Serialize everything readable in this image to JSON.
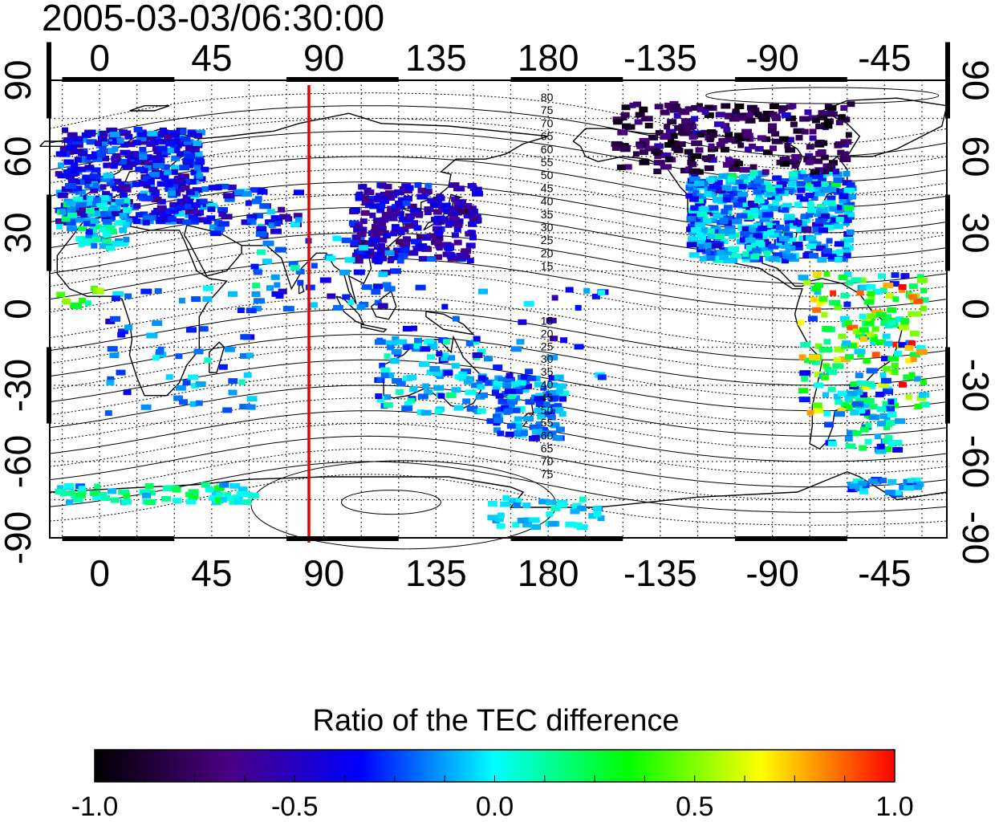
{
  "timestamp": "2005-03-03/06:30:00",
  "map": {
    "lon_ticks": [
      "0",
      "45",
      "90",
      "135",
      "180",
      "-135",
      "-90",
      "-45"
    ],
    "lat_ticks": [
      "90",
      "60",
      "30",
      "0",
      "-30",
      "-60",
      "-90"
    ],
    "lon_range": [
      -20,
      340
    ],
    "lat_range": [
      -90,
      90
    ],
    "grid": "dotted, every 15 degrees",
    "marker_longitude": 84,
    "marker_color": "#e60000",
    "contour_labels_north": [
      "80",
      "75",
      "70",
      "65",
      "60",
      "55",
      "50",
      "45",
      "40",
      "35",
      "30",
      "25",
      "20",
      "15"
    ],
    "contour_labels_south": [
      "15",
      "20",
      "25",
      "30",
      "35",
      "40",
      "45",
      "50",
      "55",
      "60",
      "65",
      "70",
      "75"
    ]
  },
  "colorbar": {
    "title": "Ratio of the TEC difference",
    "min": -1.0,
    "max": 1.0,
    "tick_labels": [
      "-1.0",
      "-0.5",
      "0.0",
      "0.5",
      "1.0"
    ],
    "colormap_stops": [
      "#000000",
      "#4b0082",
      "#0000ff",
      "#00ffff",
      "#00ff00",
      "#ffff00",
      "#ff0000"
    ]
  }
}
